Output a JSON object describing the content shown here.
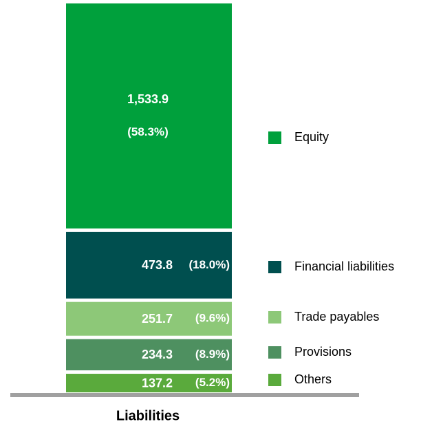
{
  "chart_data": {
    "type": "stacked_bar",
    "categories": [
      "Liabilities"
    ],
    "ylim": [
      0,
      2630.9
    ],
    "series": [
      {
        "name": "Others",
        "color": "#5aaa3c",
        "values": [
          137.2
        ],
        "value_labels": [
          "137.2"
        ],
        "share_labels": [
          "(5.2%)"
        ]
      },
      {
        "name": "Provisions",
        "color": "#4e9060",
        "values": [
          234.3
        ],
        "value_labels": [
          "234.3"
        ],
        "share_labels": [
          "(8.9%)"
        ]
      },
      {
        "name": "Trade payables",
        "color": "#8dc878",
        "values": [
          251.7
        ],
        "value_labels": [
          "251.7"
        ],
        "share_labels": [
          "(9.6%)"
        ]
      },
      {
        "name": "Financial liabilities",
        "color": "#004f4f",
        "values": [
          473.8
        ],
        "value_labels": [
          "473.8"
        ],
        "share_labels": [
          "(18.0%)"
        ]
      },
      {
        "name": "Equity",
        "color": "#00a03c",
        "values": [
          1533.9
        ],
        "value_labels": [
          "1,533.9"
        ],
        "share_labels": [
          "(58.3%)"
        ]
      }
    ]
  }
}
